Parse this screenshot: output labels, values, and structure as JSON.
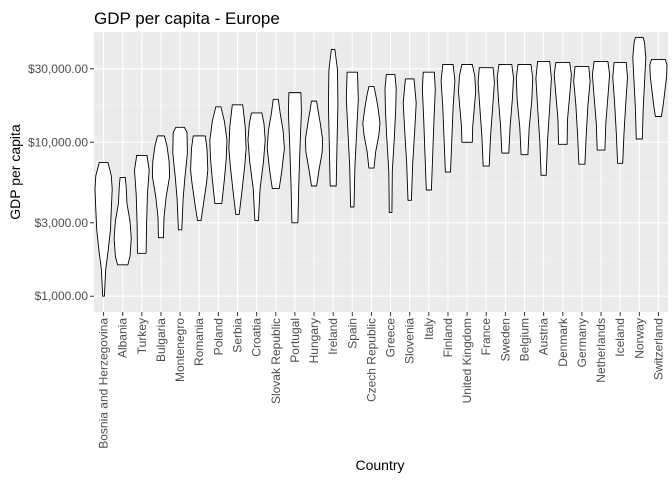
{
  "chart_data": {
    "type": "violin",
    "title": "GDP per capita - Europe",
    "xlabel": "Country",
    "ylabel": "GDP per capita",
    "y_scale": "log10",
    "ylim": [
      790,
      52000
    ],
    "y_ticks": [
      1000,
      3000,
      10000,
      30000
    ],
    "y_tick_labels": [
      "$1,000.00",
      "$3,000.00",
      "$10,000.00",
      "$30,000.00"
    ],
    "grid": true,
    "panel_background": "#EBEBEB",
    "violin_fill": "#FFFFFF",
    "violin_outline": "#000000",
    "categories": [
      "Bosnia and Herzegovina",
      "Albania",
      "Turkey",
      "Bulgaria",
      "Montenegro",
      "Romania",
      "Poland",
      "Serbia",
      "Croatia",
      "Slovak Republic",
      "Portugal",
      "Hungary",
      "Ireland",
      "Spain",
      "Czech Republic",
      "Greece",
      "Slovenia",
      "Italy",
      "Finland",
      "United Kingdom",
      "France",
      "Sweden",
      "Belgium",
      "Austria",
      "Denmark",
      "Germany",
      "Netherlands",
      "Iceland",
      "Norway",
      "Switzerland"
    ],
    "violins": [
      {
        "country": "Bosnia and Herzegovina",
        "min": 1000,
        "max": 7400,
        "profile": [
          [
            0,
            0.1
          ],
          [
            0.2,
            0.25
          ],
          [
            0.35,
            0.55
          ],
          [
            0.5,
            0.8
          ],
          [
            0.65,
            0.9
          ],
          [
            0.8,
            1.0
          ],
          [
            0.9,
            0.9
          ],
          [
            1,
            0.5
          ]
        ]
      },
      {
        "country": "Albania",
        "min": 1600,
        "max": 5900,
        "profile": [
          [
            0,
            0.6
          ],
          [
            0.1,
            0.85
          ],
          [
            0.3,
            1.0
          ],
          [
            0.5,
            0.85
          ],
          [
            0.7,
            0.5
          ],
          [
            0.9,
            0.4
          ],
          [
            1,
            0.3
          ]
        ]
      },
      {
        "country": "Turkey",
        "min": 1900,
        "max": 8200,
        "profile": [
          [
            0,
            0.5
          ],
          [
            0.3,
            0.55
          ],
          [
            0.6,
            0.65
          ],
          [
            0.85,
            0.85
          ],
          [
            1,
            0.6
          ]
        ]
      },
      {
        "country": "Bulgaria",
        "min": 2400,
        "max": 11000,
        "profile": [
          [
            0,
            0.3
          ],
          [
            0.2,
            0.35
          ],
          [
            0.4,
            0.6
          ],
          [
            0.6,
            1.0
          ],
          [
            0.75,
            0.95
          ],
          [
            0.9,
            0.7
          ],
          [
            1,
            0.4
          ]
        ]
      },
      {
        "country": "Montenegro",
        "min": 2700,
        "max": 12500,
        "profile": [
          [
            0,
            0.2
          ],
          [
            0.3,
            0.35
          ],
          [
            0.5,
            0.55
          ],
          [
            0.75,
            0.85
          ],
          [
            0.95,
            0.8
          ],
          [
            1,
            0.5
          ]
        ]
      },
      {
        "country": "Romania",
        "min": 3100,
        "max": 11000,
        "profile": [
          [
            0,
            0.2
          ],
          [
            0.2,
            0.5
          ],
          [
            0.45,
            0.85
          ],
          [
            0.6,
            1.0
          ],
          [
            0.85,
            0.9
          ],
          [
            1,
            0.7
          ]
        ]
      },
      {
        "country": "Poland",
        "min": 4000,
        "max": 17000,
        "profile": [
          [
            0,
            0.4
          ],
          [
            0.25,
            0.7
          ],
          [
            0.45,
            0.9
          ],
          [
            0.65,
            1.0
          ],
          [
            0.85,
            0.7
          ],
          [
            1,
            0.3
          ]
        ]
      },
      {
        "country": "Serbia",
        "min": 3400,
        "max": 17500,
        "profile": [
          [
            0,
            0.2
          ],
          [
            0.2,
            0.5
          ],
          [
            0.45,
            0.85
          ],
          [
            0.6,
            1.0
          ],
          [
            0.8,
            0.9
          ],
          [
            1,
            0.6
          ]
        ]
      },
      {
        "country": "Croatia",
        "min": 3100,
        "max": 15500,
        "profile": [
          [
            0,
            0.2
          ],
          [
            0.3,
            0.4
          ],
          [
            0.55,
            0.8
          ],
          [
            0.75,
            1.0
          ],
          [
            0.9,
            0.85
          ],
          [
            1,
            0.6
          ]
        ]
      },
      {
        "country": "Slovak Republic",
        "min": 5000,
        "max": 19000,
        "profile": [
          [
            0,
            0.4
          ],
          [
            0.2,
            0.7
          ],
          [
            0.45,
            1.0
          ],
          [
            0.65,
            0.85
          ],
          [
            0.85,
            0.5
          ],
          [
            1,
            0.3
          ]
        ]
      },
      {
        "country": "Portugal",
        "min": 3000,
        "max": 21000,
        "profile": [
          [
            0,
            0.35
          ],
          [
            0.3,
            0.45
          ],
          [
            0.6,
            0.6
          ],
          [
            0.85,
            0.75
          ],
          [
            1,
            0.7
          ]
        ]
      },
      {
        "country": "Hungary",
        "min": 5200,
        "max": 18500,
        "profile": [
          [
            0,
            0.3
          ],
          [
            0.2,
            0.6
          ],
          [
            0.4,
            0.95
          ],
          [
            0.55,
            1.0
          ],
          [
            0.75,
            0.7
          ],
          [
            0.9,
            0.45
          ],
          [
            1,
            0.3
          ]
        ]
      },
      {
        "country": "Ireland",
        "min": 5200,
        "max": 40000,
        "profile": [
          [
            0,
            0.35
          ],
          [
            0.3,
            0.45
          ],
          [
            0.6,
            0.55
          ],
          [
            0.85,
            0.5
          ],
          [
            1,
            0.2
          ]
        ]
      },
      {
        "country": "Spain",
        "min": 3800,
        "max": 28500,
        "profile": [
          [
            0,
            0.2
          ],
          [
            0.3,
            0.3
          ],
          [
            0.55,
            0.5
          ],
          [
            0.8,
            0.7
          ],
          [
            1,
            0.6
          ]
        ]
      },
      {
        "country": "Czech Republic",
        "min": 6800,
        "max": 23000,
        "profile": [
          [
            0,
            0.3
          ],
          [
            0.2,
            0.5
          ],
          [
            0.4,
            0.85
          ],
          [
            0.55,
            1.0
          ],
          [
            0.75,
            0.75
          ],
          [
            0.9,
            0.5
          ],
          [
            1,
            0.3
          ]
        ]
      },
      {
        "country": "Greece",
        "min": 3500,
        "max": 27500,
        "profile": [
          [
            0,
            0.15
          ],
          [
            0.3,
            0.2
          ],
          [
            0.55,
            0.45
          ],
          [
            0.75,
            0.6
          ],
          [
            0.9,
            0.65
          ],
          [
            1,
            0.5
          ]
        ]
      },
      {
        "country": "Slovenia",
        "min": 4200,
        "max": 25800,
        "profile": [
          [
            0,
            0.2
          ],
          [
            0.3,
            0.35
          ],
          [
            0.6,
            0.6
          ],
          [
            0.8,
            0.75
          ],
          [
            1,
            0.5
          ]
        ]
      },
      {
        "country": "Italy",
        "min": 4900,
        "max": 28500,
        "profile": [
          [
            0,
            0.3
          ],
          [
            0.3,
            0.45
          ],
          [
            0.6,
            0.6
          ],
          [
            0.85,
            0.75
          ],
          [
            1,
            0.65
          ]
        ]
      },
      {
        "country": "Finland",
        "min": 6400,
        "max": 32000,
        "profile": [
          [
            0,
            0.3
          ],
          [
            0.3,
            0.45
          ],
          [
            0.6,
            0.6
          ],
          [
            0.85,
            0.8
          ],
          [
            1,
            0.6
          ]
        ]
      },
      {
        "country": "United Kingdom",
        "min": 10000,
        "max": 32000,
        "profile": [
          [
            0,
            0.6
          ],
          [
            0.2,
            0.65
          ],
          [
            0.45,
            0.85
          ],
          [
            0.65,
            1.0
          ],
          [
            0.85,
            0.9
          ],
          [
            1,
            0.6
          ]
        ]
      },
      {
        "country": "France",
        "min": 7000,
        "max": 30500,
        "profile": [
          [
            0,
            0.35
          ],
          [
            0.3,
            0.5
          ],
          [
            0.6,
            0.75
          ],
          [
            0.85,
            0.95
          ],
          [
            1,
            0.8
          ]
        ]
      },
      {
        "country": "Sweden",
        "min": 8500,
        "max": 32000,
        "profile": [
          [
            0,
            0.4
          ],
          [
            0.3,
            0.55
          ],
          [
            0.6,
            0.8
          ],
          [
            0.85,
            0.95
          ],
          [
            1,
            0.75
          ]
        ]
      },
      {
        "country": "Belgium",
        "min": 8300,
        "max": 32000,
        "profile": [
          [
            0,
            0.4
          ],
          [
            0.3,
            0.55
          ],
          [
            0.6,
            0.85
          ],
          [
            0.85,
            0.95
          ],
          [
            1,
            0.75
          ]
        ]
      },
      {
        "country": "Austria",
        "min": 6100,
        "max": 33500,
        "profile": [
          [
            0,
            0.3
          ],
          [
            0.3,
            0.45
          ],
          [
            0.6,
            0.7
          ],
          [
            0.85,
            0.9
          ],
          [
            1,
            0.7
          ]
        ]
      },
      {
        "country": "Denmark",
        "min": 9700,
        "max": 33000,
        "profile": [
          [
            0,
            0.5
          ],
          [
            0.3,
            0.55
          ],
          [
            0.6,
            0.8
          ],
          [
            0.85,
            1.0
          ],
          [
            1,
            0.8
          ]
        ]
      },
      {
        "country": "Germany",
        "min": 7200,
        "max": 31000,
        "profile": [
          [
            0,
            0.35
          ],
          [
            0.3,
            0.5
          ],
          [
            0.6,
            0.7
          ],
          [
            0.85,
            0.95
          ],
          [
            1,
            0.8
          ]
        ]
      },
      {
        "country": "Netherlands",
        "min": 8900,
        "max": 33500,
        "profile": [
          [
            0,
            0.45
          ],
          [
            0.3,
            0.55
          ],
          [
            0.6,
            0.8
          ],
          [
            0.85,
            1.0
          ],
          [
            1,
            0.8
          ]
        ]
      },
      {
        "country": "Iceland",
        "min": 7300,
        "max": 33000,
        "profile": [
          [
            0,
            0.3
          ],
          [
            0.3,
            0.45
          ],
          [
            0.6,
            0.65
          ],
          [
            0.85,
            0.85
          ],
          [
            1,
            0.7
          ]
        ]
      },
      {
        "country": "Norway",
        "min": 10500,
        "max": 48000,
        "profile": [
          [
            0,
            0.35
          ],
          [
            0.3,
            0.45
          ],
          [
            0.55,
            0.6
          ],
          [
            0.8,
            0.75
          ],
          [
            0.95,
            0.6
          ],
          [
            1,
            0.45
          ]
        ]
      },
      {
        "country": "Switzerland",
        "min": 14700,
        "max": 34500,
        "profile": [
          [
            0,
            0.35
          ],
          [
            0.2,
            0.55
          ],
          [
            0.45,
            0.75
          ],
          [
            0.7,
            0.95
          ],
          [
            0.9,
            1.0
          ],
          [
            1,
            0.8
          ]
        ]
      }
    ]
  }
}
